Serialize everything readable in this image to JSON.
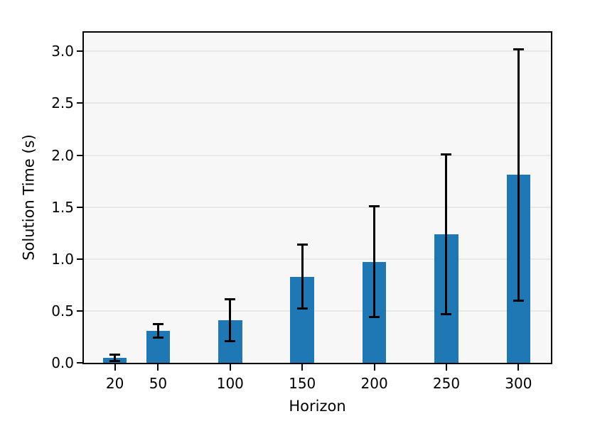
{
  "chart_data": {
    "type": "bar",
    "x": [
      20,
      50,
      100,
      150,
      200,
      250,
      300
    ],
    "values": [
      0.05,
      0.31,
      0.41,
      0.83,
      0.97,
      1.24,
      1.81
    ],
    "whisker_low": [
      0.02,
      0.24,
      0.21,
      0.52,
      0.44,
      0.47,
      0.6
    ],
    "whisker_high": [
      0.08,
      0.37,
      0.61,
      1.14,
      1.51,
      2.01,
      3.02
    ],
    "xlabel": "Horizon",
    "ylabel": "Solution Time (s)",
    "xlim": [
      -1.5,
      322.5
    ],
    "ylim": [
      0,
      3.18
    ],
    "yticks": [
      0.0,
      0.5,
      1.0,
      1.5,
      2.0,
      2.5,
      3.0
    ],
    "xticks": [
      20,
      50,
      100,
      150,
      200,
      250,
      300
    ],
    "bar_width_units": 16.5,
    "grid": "horizontal",
    "legend": null,
    "error_bars": "symmetric, black, capped",
    "colors": {
      "bar_fill": "#1f77b4",
      "error_bar": "#000000",
      "plot_background": "#f7f7f7",
      "gridline": "#e8e8e8",
      "spine": "#000000",
      "text": "#000000",
      "figure_background": "#ffffff"
    }
  }
}
